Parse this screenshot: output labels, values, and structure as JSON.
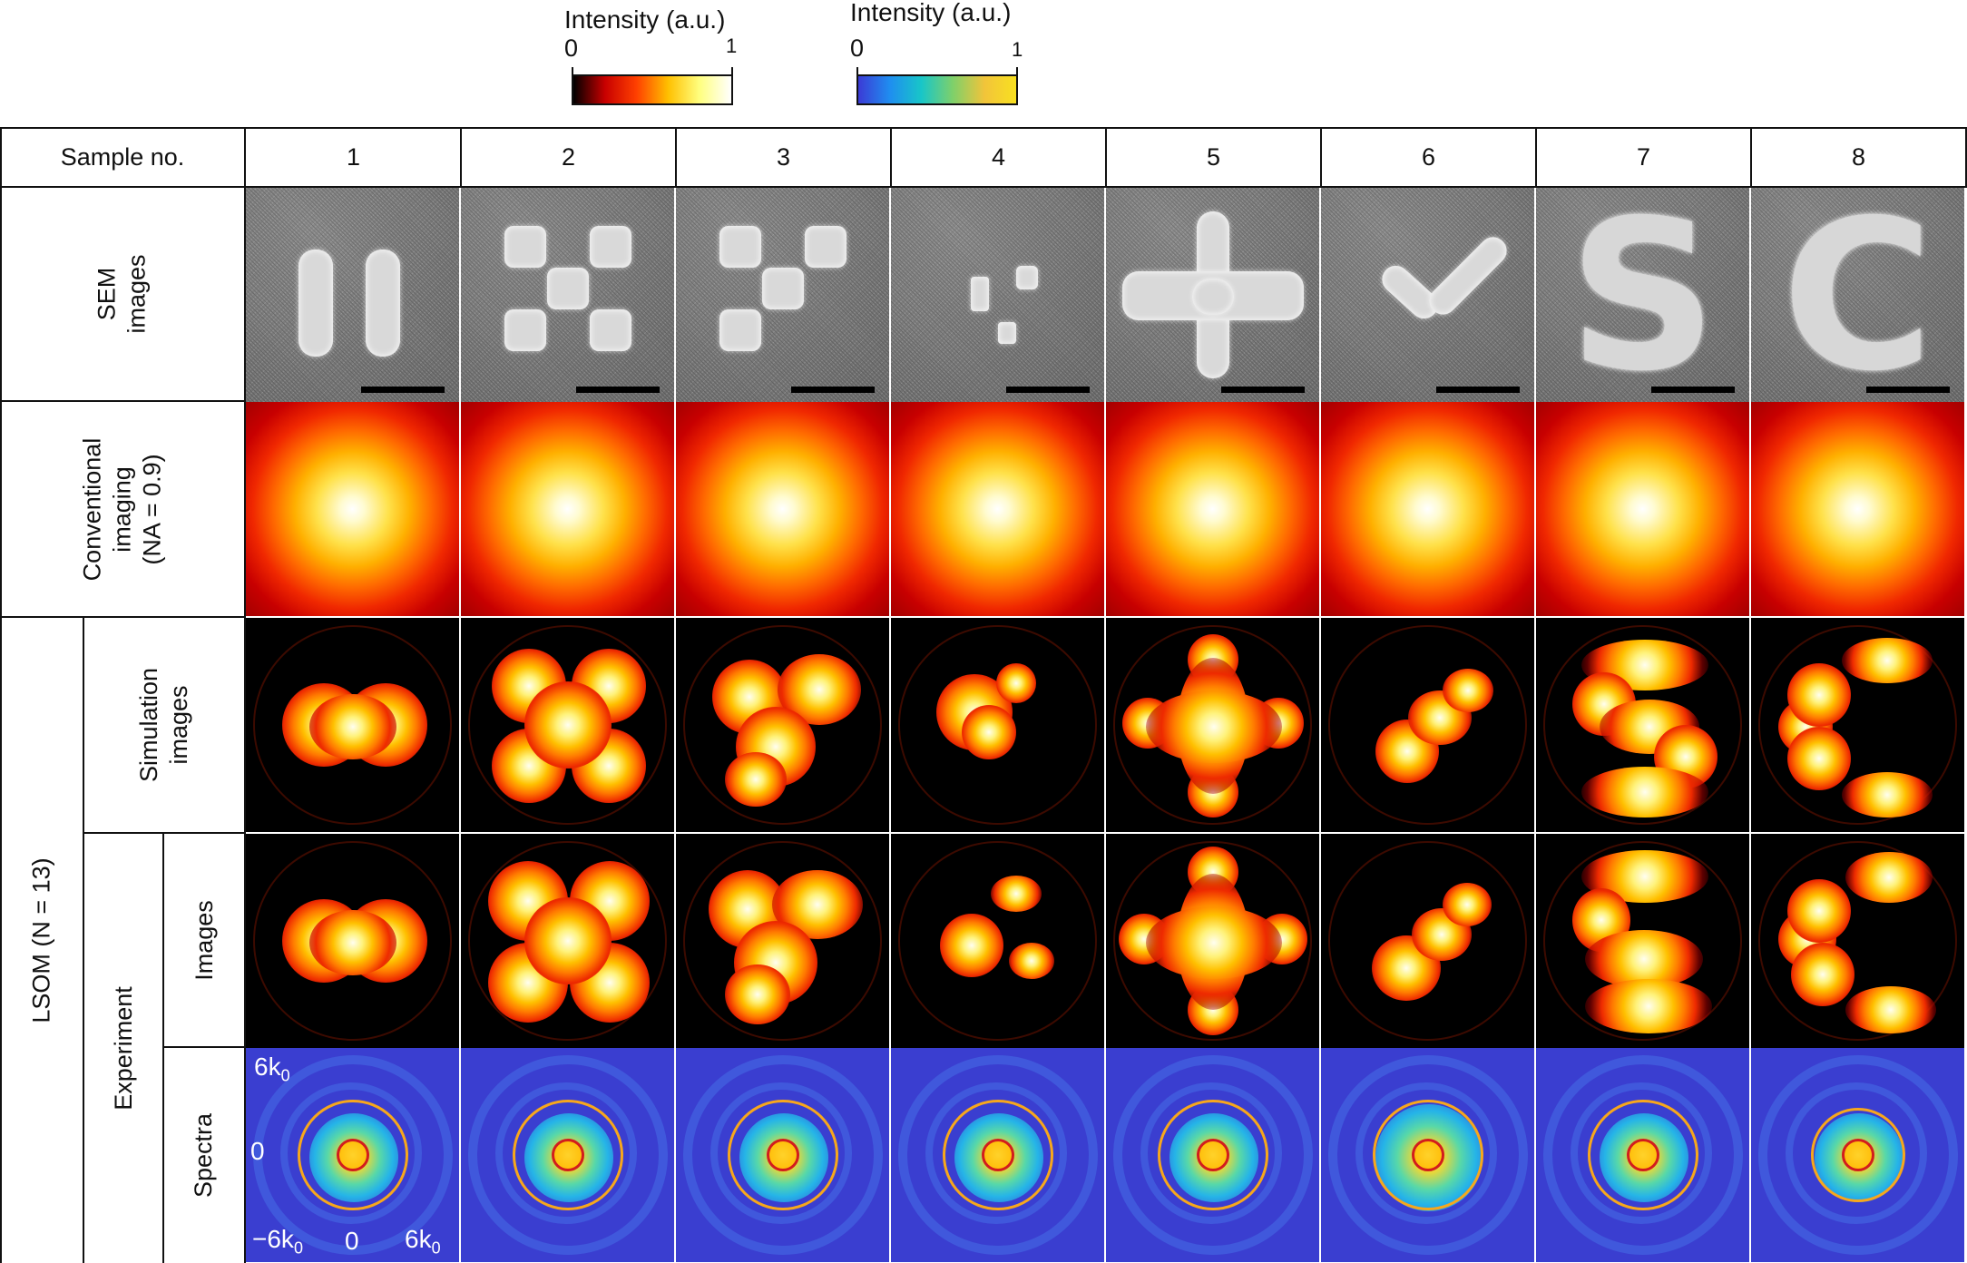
{
  "colorbars": [
    {
      "title": "Intensity (a.u.)",
      "min": "0",
      "max": "1",
      "colormap": "hot",
      "stops": [
        "#000000",
        "#c80000",
        "#ff4000",
        "#ffc000",
        "#ffff80",
        "#ffffff"
      ]
    },
    {
      "title": "Intensity (a.u.)",
      "min": "0",
      "max": "1",
      "colormap": "parula",
      "stops": [
        "#3b3bd6",
        "#1f8ef0",
        "#18c6c8",
        "#7fd06a",
        "#f2c43a",
        "#f8e020"
      ]
    }
  ],
  "table": {
    "header_label": "Sample no.",
    "samples": [
      "1",
      "2",
      "3",
      "4",
      "5",
      "6",
      "7",
      "8"
    ],
    "rows": {
      "sem": "SEM\nimages",
      "conventional": "Conventional\nimaging\n(NA = 0.9)",
      "lsom_group": "LSOM (N = 13)",
      "simulation": "Simulation\nimages",
      "experiment": "Experiment",
      "exp_images": "Images",
      "exp_spectra": "Spectra"
    },
    "spectra_axis": {
      "y_top_base": "6k",
      "y_top_sub": "0",
      "y_mid": "0",
      "x_left_base": "−6k",
      "x_left_sub": "0",
      "x_mid": "0",
      "x_right_base": "6k",
      "x_right_sub": "0"
    }
  },
  "icons": {
    "sem": "sem-micrograph-icon",
    "hot": "hot-colormap",
    "spectra": "parula-colormap"
  }
}
